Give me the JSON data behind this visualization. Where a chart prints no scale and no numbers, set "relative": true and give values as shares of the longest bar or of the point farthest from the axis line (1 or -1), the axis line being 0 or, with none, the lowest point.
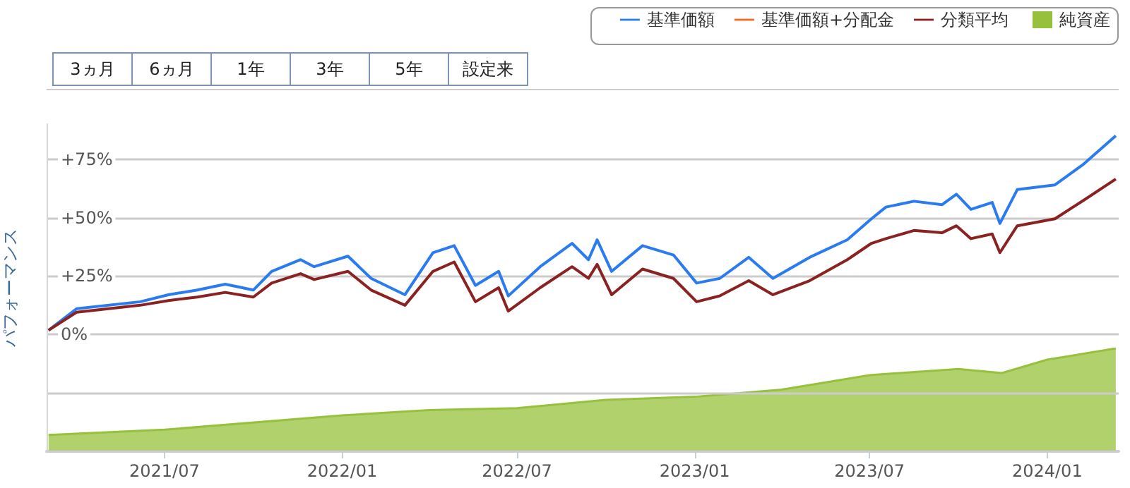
{
  "chart_data": [
    {
      "type": "line",
      "ylabel": "パフォーマンス",
      "x": [
        "2021-03-03",
        "2021-04-01",
        "2021-06-06",
        "2021-07-05",
        "2021-08-04",
        "2021-09-02",
        "2021-10-01",
        "2021-10-20",
        "2021-11-19",
        "2021-12-03",
        "2022-01-07",
        "2022-01-31",
        "2022-03-07",
        "2022-04-05",
        "2022-04-27",
        "2022-05-19",
        "2022-06-12",
        "2022-06-22",
        "2022-07-25",
        "2022-08-27",
        "2022-09-13",
        "2022-09-22",
        "2022-10-07",
        "2022-11-08",
        "2022-12-10",
        "2023-01-03",
        "2023-01-27",
        "2023-02-26",
        "2023-03-23",
        "2023-04-30",
        "2023-06-08",
        "2023-07-03",
        "2023-07-18",
        "2023-08-16",
        "2023-09-14",
        "2023-09-29",
        "2023-10-14",
        "2023-11-05",
        "2023-11-13",
        "2023-12-01",
        "2024-01-09",
        "2024-02-08",
        "2024-03-12"
      ],
      "series": [
        {
          "name": "基準価額",
          "color": "#2b7bf0",
          "values": [
            1.8,
            11,
            14,
            17,
            19,
            21.5,
            19,
            27,
            32,
            29,
            33.5,
            24,
            17,
            35,
            38,
            21,
            27,
            16.5,
            29,
            39,
            32,
            40.5,
            27,
            38,
            34,
            22,
            24,
            33,
            24,
            33,
            40.5,
            49.5,
            54.5,
            57,
            55.5,
            60,
            53.5,
            56.5,
            47.5,
            62,
            64,
            73,
            85
          ]
        },
        {
          "name": "基準価額+分配金",
          "color": "#f06a1f",
          "values": [
            null,
            null,
            null,
            null,
            null,
            null,
            null,
            null,
            null,
            null,
            null,
            null,
            null,
            null,
            null,
            null,
            null,
            null,
            null,
            null,
            null,
            null,
            null,
            null,
            null,
            null,
            null,
            null,
            null,
            null,
            null,
            null,
            null,
            null,
            null,
            null,
            null,
            null,
            null,
            null,
            null,
            null,
            null
          ]
        },
        {
          "name": "分類平均",
          "color": "#8b2222",
          "values": [
            1.8,
            9.5,
            12.5,
            14.5,
            16,
            18,
            16,
            22,
            26,
            23.5,
            27,
            19,
            12.5,
            27,
            31,
            14,
            20,
            10,
            20,
            29,
            24,
            30,
            17,
            28,
            24,
            14,
            16.5,
            23,
            17,
            23,
            32,
            39,
            41,
            44.5,
            43.5,
            46.5,
            41,
            43,
            35,
            46.5,
            49.5,
            57.5,
            66.5
          ]
        }
      ],
      "xlim": [
        "2021-03-01",
        "2024-03-15"
      ],
      "ylim": [
        -50,
        90
      ],
      "yticks": [
        {
          "value": -50,
          "label": null
        },
        {
          "value": -25,
          "label": null
        },
        {
          "value": 0,
          "label": "0%"
        },
        {
          "value": 25,
          "label": "+25%"
        },
        {
          "value": 50,
          "label": "+50%"
        },
        {
          "value": 75,
          "label": "+75%"
        }
      ],
      "tick_labels": "y",
      "grid": "y",
      "legend": "top right",
      "marker": "none",
      "line_style": "solid",
      "annotations": [
        "3ヵ月",
        "6ヵ月",
        "1年",
        "3年",
        "5年",
        "設定来"
      ]
    },
    {
      "type": "area",
      "relative": true,
      "x": [
        "2021-03-03",
        "2021-07-01",
        "2022-01-01",
        "2022-04-01",
        "2022-07-01",
        "2022-10-01",
        "2023-01-01",
        "2023-04-01",
        "2023-07-01",
        "2023-10-01",
        "2023-11-15",
        "2024-01-01",
        "2024-03-12"
      ],
      "series": [
        {
          "name": "純資産",
          "color": "#97c13c",
          "values": [
            0.16,
            0.21,
            0.35,
            0.4,
            0.42,
            0.5,
            0.53,
            0.6,
            0.74,
            0.8,
            0.76,
            0.89,
            1
          ]
        }
      ],
      "xlim": [
        "2021-03-01",
        "2024-03-15"
      ],
      "xticks": [
        {
          "value": "2021-07-01",
          "label": "2021/07"
        },
        {
          "value": "2022-01-01",
          "label": "2022/01"
        },
        {
          "value": "2022-07-01",
          "label": "2022/07"
        },
        {
          "value": "2023-01-01",
          "label": "2023/01"
        },
        {
          "value": "2023-07-01",
          "label": "2023/07"
        },
        {
          "value": "2024-01-01",
          "label": "2024/01"
        }
      ],
      "tick_labels": "x",
      "legend": "top right"
    }
  ]
}
